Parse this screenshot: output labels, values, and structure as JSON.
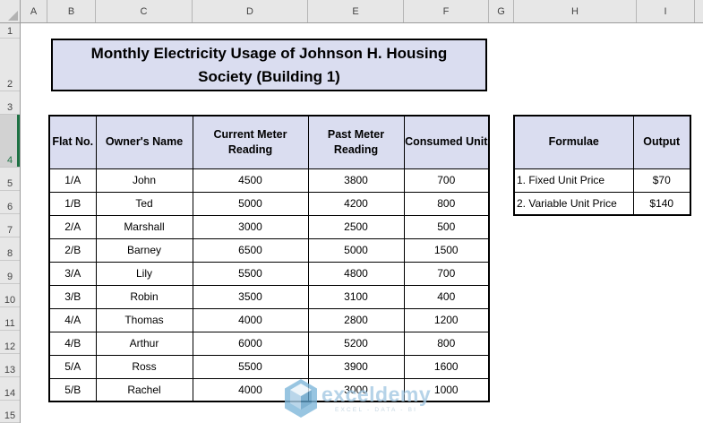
{
  "sheet": {
    "column_headers": [
      "A",
      "B",
      "C",
      "D",
      "E",
      "F",
      "G",
      "H",
      "I"
    ],
    "row_headers": [
      "1",
      "2",
      "3",
      "4",
      "5",
      "6",
      "7",
      "8",
      "9",
      "10",
      "11",
      "12",
      "13",
      "14",
      "15"
    ],
    "selected_row_header": "4"
  },
  "title": {
    "line1": "Monthly Electricity Usage of Johnson H. Housing",
    "line2": "Society (Building 1)"
  },
  "usage_table": {
    "headers": [
      "Flat No.",
      "Owner's Name",
      "Current Meter Reading",
      "Past Meter Reading",
      "Consumed Unit"
    ],
    "rows": [
      [
        "1/A",
        "John",
        "4500",
        "3800",
        "700"
      ],
      [
        "1/B",
        "Ted",
        "5000",
        "4200",
        "800"
      ],
      [
        "2/A",
        "Marshall",
        "3000",
        "2500",
        "500"
      ],
      [
        "2/B",
        "Barney",
        "6500",
        "5000",
        "1500"
      ],
      [
        "3/A",
        "Lily",
        "5500",
        "4800",
        "700"
      ],
      [
        "3/B",
        "Robin",
        "3500",
        "3100",
        "400"
      ],
      [
        "4/A",
        "Thomas",
        "4000",
        "2800",
        "1200"
      ],
      [
        "4/B",
        "Arthur",
        "6000",
        "5200",
        "800"
      ],
      [
        "5/A",
        "Ross",
        "5500",
        "3900",
        "1600"
      ],
      [
        "5/B",
        "Rachel",
        "4000",
        "3000",
        "1000"
      ]
    ]
  },
  "formulae_table": {
    "headers": [
      "Formulae",
      "Output"
    ],
    "rows": [
      [
        "1. Fixed Unit Price",
        "$70"
      ],
      [
        "2. Variable Unit Price",
        "$140"
      ]
    ]
  },
  "watermark": {
    "brand": "exceldemy",
    "tagline": "EXCEL - DATA - BI",
    "icon": "exceldemy-cube-icon"
  },
  "colors": {
    "accent_fill": "#DADDF0",
    "selection_green": "#1E7244",
    "watermark_blue": "#A4C9E3",
    "border_black": "#000000"
  }
}
